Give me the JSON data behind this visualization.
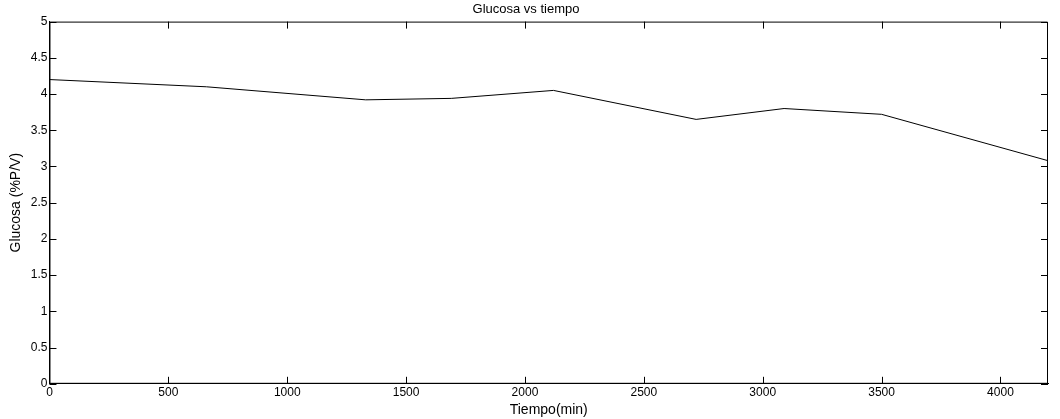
{
  "chart_data": {
    "type": "line",
    "title": "Glucosa vs tiempo",
    "xlabel": "Tiempo(min)",
    "ylabel": "Glucosa (%P/V)",
    "x": [
      0,
      660,
      1330,
      1690,
      2120,
      2720,
      3090,
      3500,
      4200
    ],
    "series": [
      {
        "color": "#000000",
        "values": [
          4.2,
          4.1,
          3.92,
          3.94,
          4.05,
          3.65,
          3.8,
          3.72,
          3.08
        ]
      }
    ],
    "xlim": [
      0,
      4200
    ],
    "xticks": [
      0,
      500,
      1000,
      1500,
      2000,
      2500,
      3000,
      3500,
      4000
    ],
    "ylim": [
      0,
      5
    ],
    "yticks": [
      0,
      0.5,
      1,
      1.5,
      2,
      2.5,
      3,
      3.5,
      4,
      4.5,
      5
    ],
    "marker": "none",
    "line_style": "solid",
    "legend": false
  }
}
